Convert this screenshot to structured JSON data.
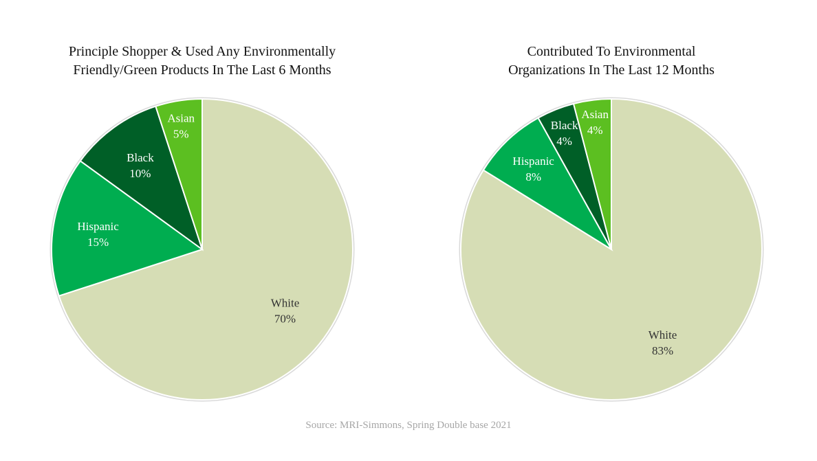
{
  "chart_data": [
    {
      "type": "pie",
      "title": [
        "Principle Shopper & Used Any Environmentally",
        "Friendly/Green Products In The Last 6 Months"
      ],
      "slices": [
        {
          "label": "White",
          "value": 70,
          "value_label": "70%",
          "color": "#d6ddb5",
          "text_color": "#333333"
        },
        {
          "label": "Hispanic",
          "value": 15,
          "value_label": "15%",
          "color": "#00ad50",
          "text_color": "#ffffff"
        },
        {
          "label": "Black",
          "value": 10,
          "value_label": "10%",
          "color": "#005f27",
          "text_color": "#ffffff"
        },
        {
          "label": "Asian",
          "value": 5,
          "value_label": "5%",
          "color": "#5cbf21",
          "text_color": "#ffffff"
        }
      ],
      "start_angle": "12 o'clock",
      "direction": "clockwise"
    },
    {
      "type": "pie",
      "title": [
        "Contributed To Environmental",
        "Organizations In The Last 12 Months"
      ],
      "slices": [
        {
          "label": "White",
          "value": 83,
          "value_label": "83%",
          "color": "#d6ddb5",
          "text_color": "#333333"
        },
        {
          "label": "Hispanic",
          "value": 8,
          "value_label": "8%",
          "color": "#00ad50",
          "text_color": "#ffffff"
        },
        {
          "label": "Black",
          "value": 4,
          "value_label": "4%",
          "color": "#005f27",
          "text_color": "#ffffff"
        },
        {
          "label": "Asian",
          "value": 4,
          "value_label": "4%",
          "color": "#5cbf21",
          "text_color": "#ffffff"
        }
      ],
      "start_angle": "12 o'clock",
      "direction": "clockwise"
    }
  ],
  "source": "Source: MRI-Simmons, Spring Double base 2021"
}
